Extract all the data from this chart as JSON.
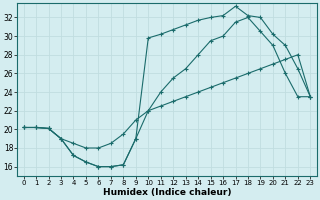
{
  "xlabel": "Humidex (Indice chaleur)",
  "bg_color": "#d4edf0",
  "grid_color": "#c0dde0",
  "line_color": "#1a6b6b",
  "xlim": [
    -0.5,
    23.5
  ],
  "ylim": [
    15.0,
    33.5
  ],
  "xticks": [
    0,
    1,
    2,
    3,
    4,
    5,
    6,
    7,
    8,
    9,
    10,
    11,
    12,
    13,
    14,
    15,
    16,
    17,
    18,
    19,
    20,
    21,
    22,
    23
  ],
  "yticks": [
    16,
    18,
    20,
    22,
    24,
    26,
    28,
    30,
    32
  ],
  "series1_x": [
    0,
    1,
    2,
    3,
    4,
    5,
    6,
    7,
    8,
    9,
    10,
    11,
    12,
    13,
    14,
    15,
    16,
    17,
    18,
    19,
    20,
    21,
    22,
    23
  ],
  "series1_y": [
    20.2,
    20.2,
    20.1,
    19.0,
    17.2,
    16.5,
    16.0,
    16.0,
    16.2,
    19.0,
    22.0,
    24.0,
    25.5,
    26.5,
    28.0,
    29.5,
    30.0,
    31.5,
    32.0,
    30.5,
    29.0,
    26.0,
    23.5,
    23.5
  ],
  "series2_x": [
    0,
    1,
    2,
    3,
    4,
    5,
    6,
    7,
    8,
    9,
    10,
    11,
    12,
    13,
    14,
    15,
    16,
    17,
    18,
    19,
    20,
    21,
    22,
    23
  ],
  "series2_y": [
    20.2,
    20.2,
    20.1,
    19.0,
    18.5,
    18.0,
    18.0,
    18.5,
    19.5,
    21.0,
    22.0,
    22.5,
    23.0,
    23.5,
    24.0,
    24.5,
    25.0,
    25.5,
    26.0,
    26.5,
    27.0,
    27.5,
    28.0,
    23.5
  ],
  "series3_x": [
    0,
    1,
    2,
    3,
    4,
    5,
    6,
    7,
    8,
    9,
    10,
    11,
    12,
    13,
    14,
    15,
    16,
    17,
    18,
    19,
    20,
    21,
    22,
    23
  ],
  "series3_y": [
    20.2,
    20.2,
    20.1,
    19.0,
    17.2,
    16.5,
    16.0,
    16.0,
    16.2,
    19.0,
    29.8,
    30.2,
    30.7,
    31.2,
    31.7,
    32.0,
    32.2,
    33.2,
    32.2,
    32.0,
    30.2,
    29.0,
    26.5,
    23.5
  ]
}
